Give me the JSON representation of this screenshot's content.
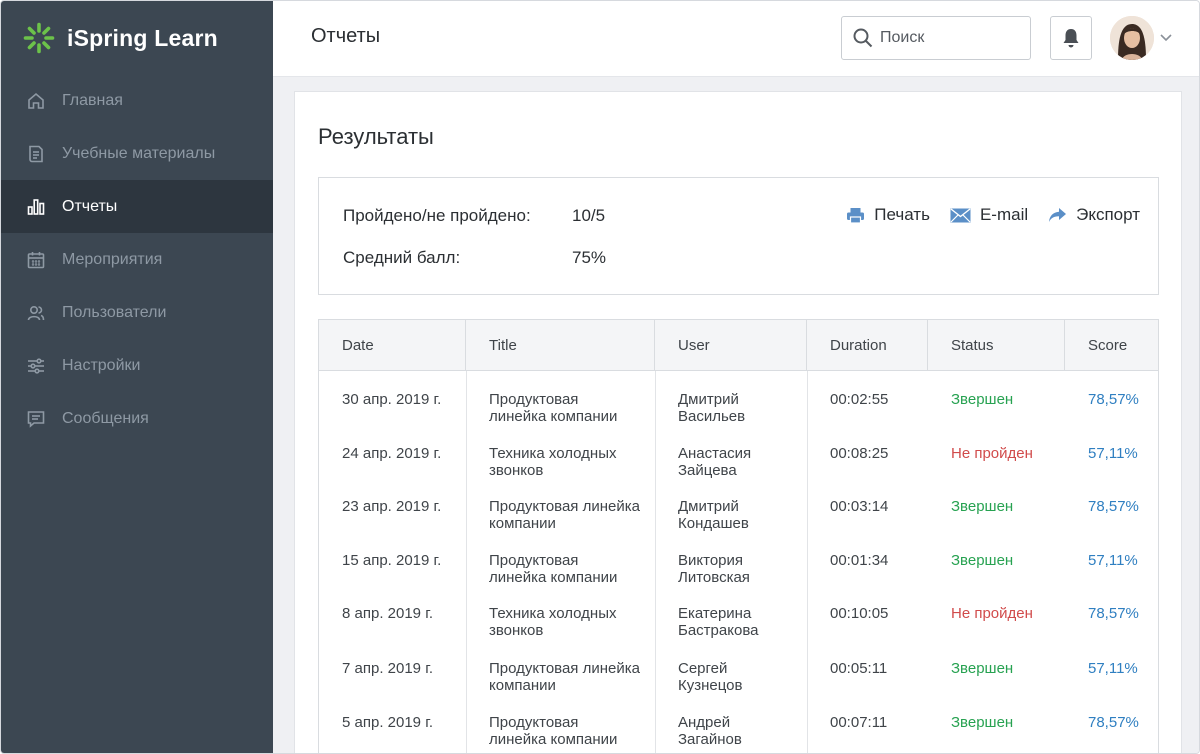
{
  "app": {
    "name": "iSpring Learn"
  },
  "sidebar": {
    "items": [
      {
        "label": "Главная",
        "icon": "home-icon",
        "active": false
      },
      {
        "label": "Учебные материалы",
        "icon": "document-icon",
        "active": false
      },
      {
        "label": "Отчеты",
        "icon": "bar-chart-icon",
        "active": true
      },
      {
        "label": "Мероприятия",
        "icon": "calendar-icon",
        "active": false
      },
      {
        "label": "Пользователи",
        "icon": "users-icon",
        "active": false
      },
      {
        "label": "Настройки",
        "icon": "sliders-icon",
        "active": false
      },
      {
        "label": "Сообщения",
        "icon": "message-icon",
        "active": false
      }
    ]
  },
  "header": {
    "title": "Отчеты",
    "search_placeholder": "Поиск"
  },
  "results": {
    "title": "Результаты",
    "passed_label": "Пройдено/не пройдено:",
    "passed_value": "10/5",
    "avg_label": "Средний балл:",
    "avg_value": "75%",
    "actions": {
      "print": "Печать",
      "email": "E-mail",
      "export": "Экспорт"
    }
  },
  "table": {
    "columns": [
      "Date",
      "Title",
      "User",
      "Duration",
      "Status",
      "Score"
    ],
    "rows": [
      {
        "date": "30 апр. 2019 г.",
        "title1": "Продуктовая",
        "title2": "линейка компании",
        "user1": "Дмитрий",
        "user2": "Васильев",
        "duration": "00:02:55",
        "status": "Звершен",
        "status_type": "ok",
        "score": "78,57%"
      },
      {
        "date": "24 апр. 2019 г.",
        "title1": "Техника холодных",
        "title2": "звонков",
        "user1": "Анастасия",
        "user2": "Зайцева",
        "duration": "00:08:25",
        "status": "Не пройден",
        "status_type": "fail",
        "score": "57,11%"
      },
      {
        "date": "23 апр. 2019 г.",
        "title1": "Продуктовая линейка",
        "title2": "компании",
        "user1": "Дмитрий",
        "user2": "Кондашев",
        "duration": "00:03:14",
        "status": "Звершен",
        "status_type": "ok",
        "score": "78,57%"
      },
      {
        "date": "15 апр. 2019 г.",
        "title1": "Продуктовая",
        "title2": "линейка компании",
        "user1": "Виктория",
        "user2": "Литовская",
        "duration": "00:01:34",
        "status": "Звершен",
        "status_type": "ok",
        "score": "57,11%"
      },
      {
        "date": "8 апр. 2019 г.",
        "title1": "Техника холодных",
        "title2": "звонков",
        "user1": "Екатерина",
        "user2": "Бастракова",
        "duration": "00:10:05",
        "status": "Не пройден",
        "status_type": "fail",
        "score": "78,57%"
      },
      {
        "date": "7 апр. 2019 г.",
        "title1": "Продуктовая линейка",
        "title2": "компании",
        "user1": "Сергей",
        "user2": "Кузнецов",
        "duration": "00:05:11",
        "status": "Звершен",
        "status_type": "ok",
        "score": "57,11%"
      },
      {
        "date": "5 апр. 2019 г.",
        "title1": "Продуктовая",
        "title2": "линейка компании",
        "user1": "Андрей",
        "user2": "Загайнов",
        "duration": "00:07:11",
        "status": "Звершен",
        "status_type": "ok",
        "score": "78,57%"
      }
    ]
  },
  "colors": {
    "sidebar_bg": "#3c4752",
    "sidebar_active": "#2d363f",
    "logo_green": "#6cc24a",
    "status_ok": "#27a251",
    "status_fail": "#d14b4b",
    "score": "#2f7fc1",
    "action_icon": "#5b8fc7"
  }
}
